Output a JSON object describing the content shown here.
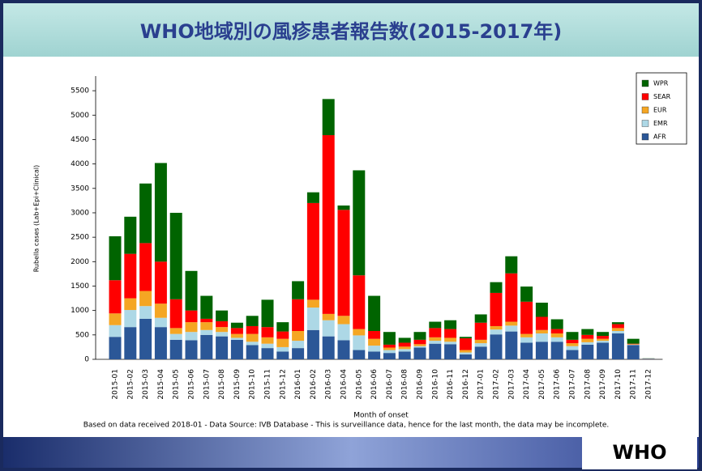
{
  "chart_data": {
    "type": "stacked_bar",
    "title": "WHO地域別の風疹患者報告数(2015-2017年)",
    "y_label": "Rubella cases (Lab+Epi+Clinical)",
    "x_label": "Month of onset",
    "note": "Based on data received 2018-01 - Data Source: IVB Database - This is surveillance data, hence for the last month, the data may be incomplete.",
    "logo": "WHO",
    "categories": [
      "2015-01",
      "2015-02",
      "2015-03",
      "2015-04",
      "2015-05",
      "2015-06",
      "2015-07",
      "2015-08",
      "2015-09",
      "2015-10",
      "2015-11",
      "2015-12",
      "2016-01",
      "2016-02",
      "2016-03",
      "2016-04",
      "2016-05",
      "2016-06",
      "2016-07",
      "2016-08",
      "2016-09",
      "2016-10",
      "2016-11",
      "2016-12",
      "2017-01",
      "2017-02",
      "2017-03",
      "2017-04",
      "2017-05",
      "2017-06",
      "2017-07",
      "2017-08",
      "2017-09",
      "2017-10",
      "2017-11",
      "2017-12"
    ],
    "series": [
      {
        "name": "AFR",
        "color": "#2b5797",
        "values": [
          460,
          660,
          830,
          660,
          400,
          390,
          500,
          470,
          400,
          290,
          230,
          160,
          230,
          600,
          470,
          390,
          190,
          160,
          130,
          160,
          240,
          320,
          310,
          100,
          260,
          510,
          570,
          340,
          360,
          360,
          190,
          300,
          340,
          530,
          290,
          10
        ]
      },
      {
        "name": "EMR",
        "color": "#add8e6",
        "values": [
          240,
          350,
          260,
          190,
          120,
          170,
          100,
          90,
          40,
          70,
          90,
          90,
          150,
          460,
          330,
          330,
          300,
          120,
          60,
          50,
          30,
          60,
          50,
          40,
          70,
          100,
          120,
          110,
          170,
          90,
          80,
          50,
          40,
          50,
          10,
          2
        ]
      },
      {
        "name": "EUR",
        "color": "#f5a623",
        "values": [
          240,
          240,
          310,
          290,
          120,
          200,
          160,
          100,
          80,
          160,
          130,
          170,
          200,
          160,
          130,
          170,
          130,
          140,
          50,
          50,
          40,
          70,
          80,
          50,
          70,
          70,
          80,
          70,
          70,
          80,
          60,
          70,
          40,
          60,
          10,
          2
        ]
      },
      {
        "name": "SEAR",
        "color": "#ff0000",
        "values": [
          680,
          910,
          980,
          860,
          590,
          240,
          70,
          120,
          120,
          160,
          210,
          150,
          650,
          1980,
          3660,
          2170,
          1100,
          160,
          60,
          80,
          90,
          190,
          180,
          240,
          350,
          680,
          990,
          660,
          270,
          90,
          70,
          80,
          60,
          80,
          10,
          2
        ]
      },
      {
        "name": "WPR",
        "color": "#006400",
        "values": [
          900,
          760,
          1220,
          2020,
          1770,
          810,
          470,
          220,
          110,
          210,
          560,
          190,
          370,
          220,
          740,
          90,
          2150,
          720,
          260,
          100,
          160,
          130,
          180,
          30,
          170,
          220,
          350,
          310,
          290,
          200,
          160,
          120,
          80,
          40,
          100,
          4
        ]
      }
    ],
    "ylim": [
      0,
      5800
    ],
    "yticks": [
      0,
      500,
      1000,
      1500,
      2000,
      2500,
      3000,
      3500,
      4000,
      4500,
      5000,
      5500
    ]
  }
}
